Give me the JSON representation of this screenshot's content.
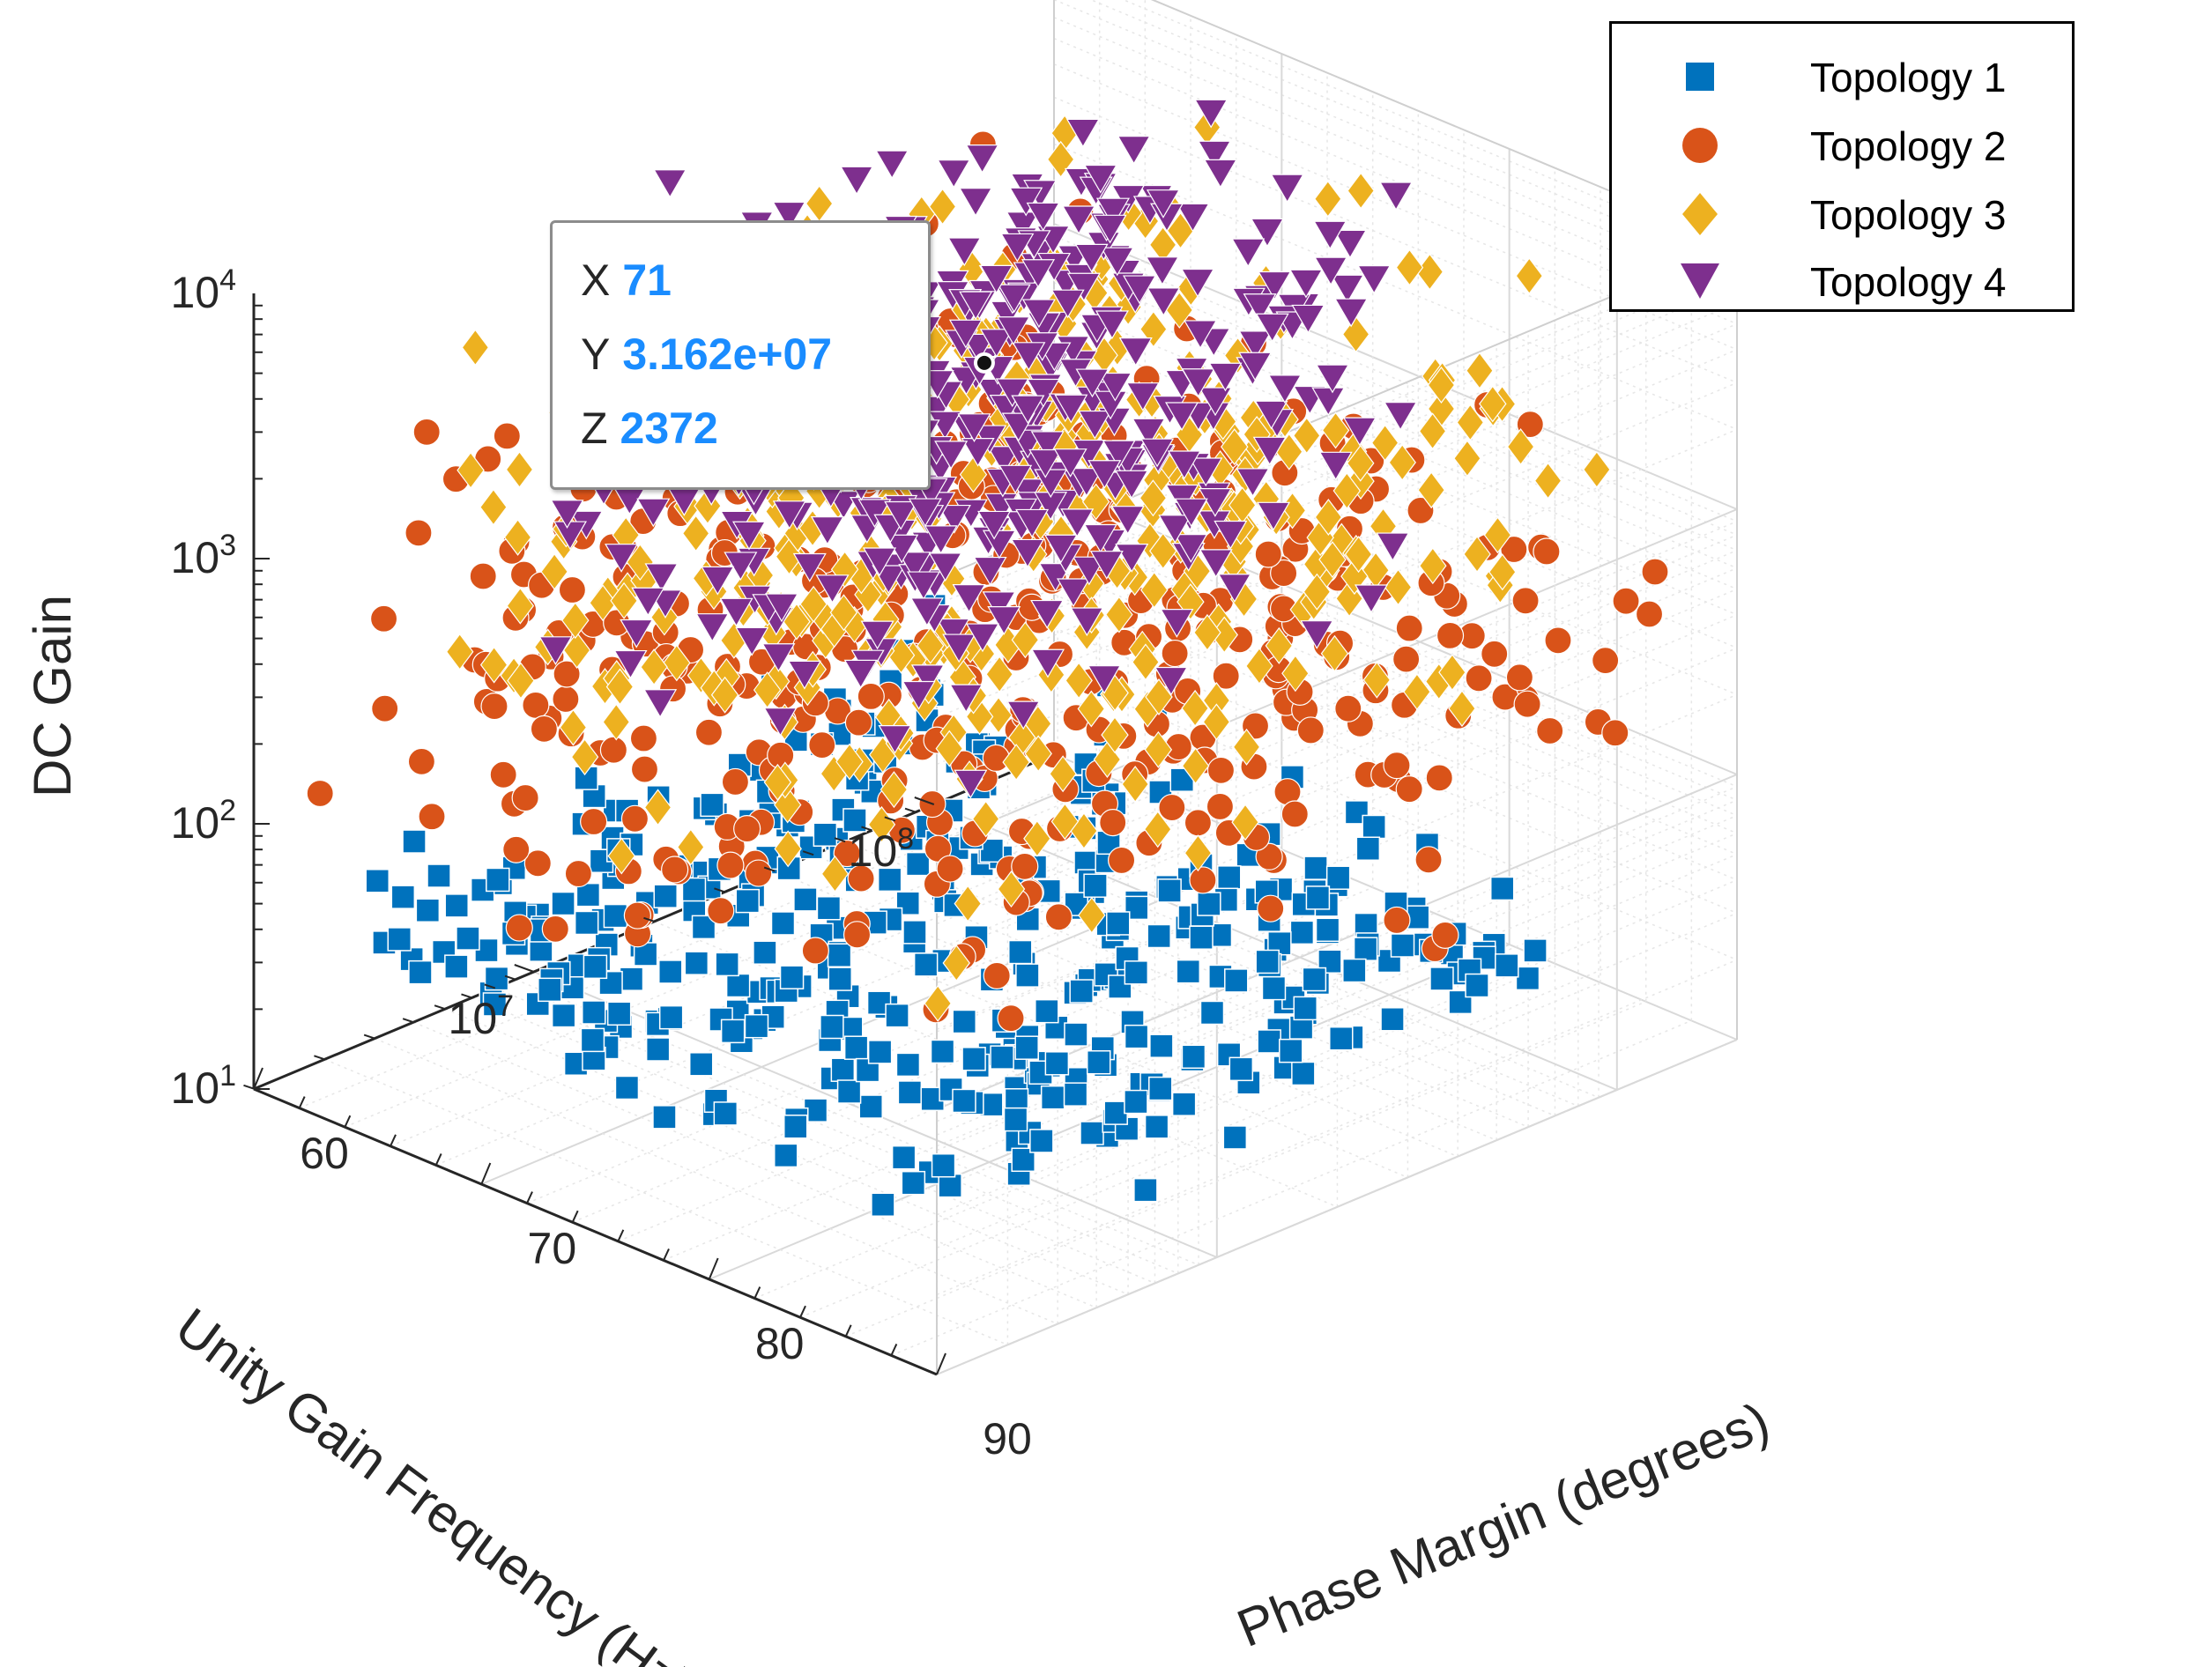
{
  "chart_data": {
    "type": "scatter3d",
    "title": "",
    "xlabel": "Phase Margin (degrees)",
    "ylabel": "Unity Gain Frequency (Hz)",
    "zlabel": "DC Gain",
    "xlim": [
      60,
      90
    ],
    "ylim": [
      2000000,
      200000000
    ],
    "zlim": [
      10,
      10000
    ],
    "x_ticks": [
      "60",
      "70",
      "80",
      "90"
    ],
    "y_ticks": [
      {
        "base": "10",
        "exp": "7"
      },
      {
        "base": "10",
        "exp": "8"
      }
    ],
    "z_ticks": [
      {
        "base": "10",
        "exp": "1"
      },
      {
        "base": "10",
        "exp": "2"
      },
      {
        "base": "10",
        "exp": "3"
      },
      {
        "base": "10",
        "exp": "4"
      }
    ],
    "grid": true,
    "legend_position": "top-right",
    "series": [
      {
        "name": "Topology 1",
        "marker": "square",
        "color": "#0072BD",
        "x_range": [
          62,
          90
        ],
        "log_y_range": [
          6.4,
          7.9
        ],
        "log_z_range": [
          1.25,
          2.0
        ],
        "count": 420
      },
      {
        "name": "Topology 2",
        "marker": "circle",
        "color": "#D95319",
        "x_range": [
          60,
          90
        ],
        "log_y_range": [
          6.4,
          8.2
        ],
        "log_z_range": [
          1.6,
          3.5
        ],
        "count": 430
      },
      {
        "name": "Topology 3",
        "marker": "diamond",
        "color": "#EDB120",
        "x_range": [
          60,
          86
        ],
        "log_y_range": [
          6.6,
          8.3
        ],
        "log_z_range": [
          1.8,
          3.9
        ],
        "count": 430
      },
      {
        "name": "Topology 4",
        "marker": "triangle-down",
        "color": "#7E2F8E",
        "x_range": [
          60,
          76
        ],
        "log_y_range": [
          7.0,
          8.3
        ],
        "log_z_range": [
          2.0,
          4.0
        ],
        "count": 440
      }
    ],
    "datatip": {
      "x_key": "X",
      "x_value": "71",
      "y_key": "Y",
      "y_value": "3.162e+07",
      "z_key": "Z",
      "z_value": "2372",
      "point": {
        "x": 71,
        "y": 31620000,
        "z": 2372
      }
    }
  }
}
